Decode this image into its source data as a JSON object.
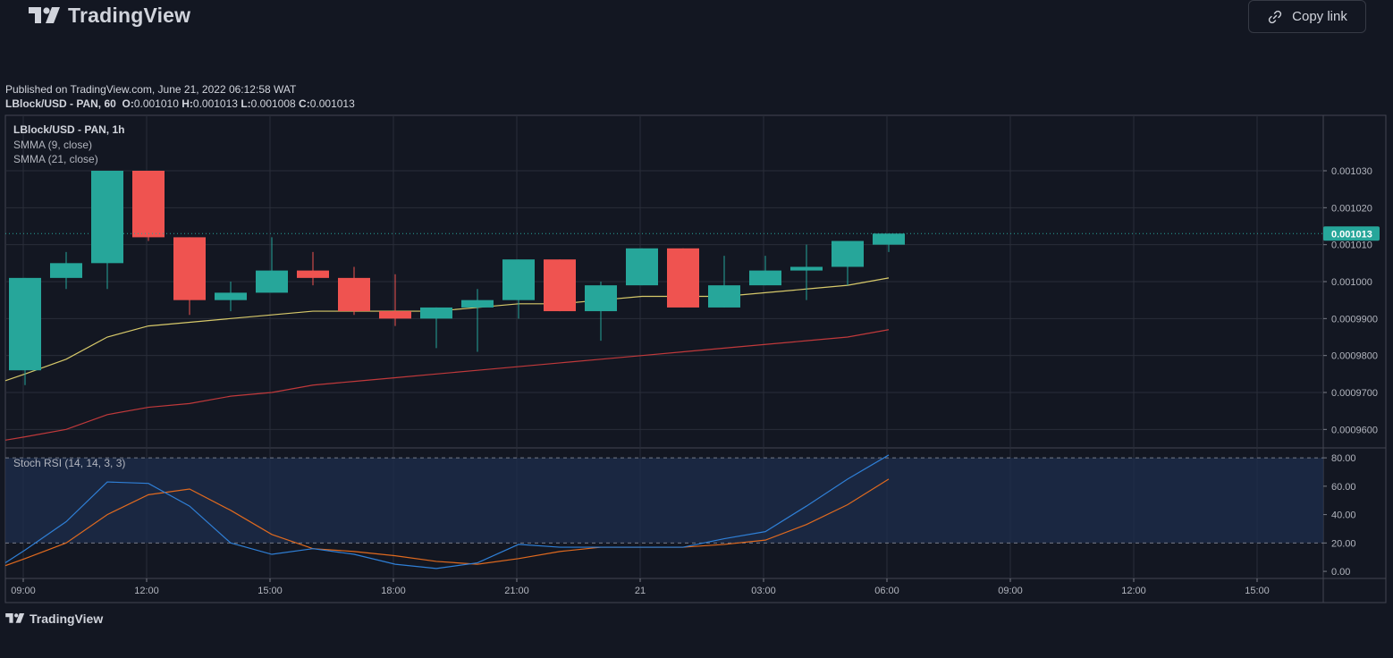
{
  "header": {
    "brand": "TradingView",
    "copy_link": "Copy link"
  },
  "info": {
    "published": "Published on TradingView.com, June 21, 2022 06:12:58 WAT",
    "symbol_line": "LBlock/USD - PAN, 60",
    "o_label": "O:",
    "o_value": "0.001010",
    "h_label": "H:",
    "h_value": "0.001013",
    "l_label": "L:",
    "l_value": "0.001008",
    "c_label": "C:",
    "c_value": "0.001013"
  },
  "legend": {
    "title": "LBlock/USD - PAN, 1h",
    "smma9": "SMMA (9, close)",
    "smma21": "SMMA (21, close)",
    "stoch": "Stoch RSI (14, 14, 3, 3)"
  },
  "footer": {
    "brand": "TradingView"
  },
  "colors": {
    "up": "#26a69a",
    "down": "#ef5350",
    "smma9": "#d7c96a",
    "smma21": "#c0393b",
    "k": "#2f7fd6",
    "d": "#e06a1f",
    "grid": "#2a2e39",
    "bg": "#131722"
  },
  "chart_data": {
    "type": "candlestick",
    "x_ticks": [
      "09:00",
      "12:00",
      "15:00",
      "18:00",
      "21:00",
      "21",
      "03:00",
      "06:00",
      "09:00",
      "12:00",
      "15:00"
    ],
    "y_ticks": [
      "0.001030",
      "0.001020",
      "0.001010",
      "0.001000",
      "0.0009900",
      "0.0009800",
      "0.0009700",
      "0.0009600"
    ],
    "y_range": [
      0.000955,
      0.001045
    ],
    "last_price": "0.001013",
    "candles": [
      {
        "o": 0.000976,
        "h": 0.001001,
        "l": 0.000972,
        "c": 0.001001
      },
      {
        "o": 0.001001,
        "h": 0.001008,
        "l": 0.000998,
        "c": 0.001005
      },
      {
        "o": 0.001005,
        "h": 0.00103,
        "l": 0.000998,
        "c": 0.00103
      },
      {
        "o": 0.00103,
        "h": 0.00103,
        "l": 0.001011,
        "c": 0.001012
      },
      {
        "o": 0.001012,
        "h": 0.001012,
        "l": 0.000991,
        "c": 0.000995
      },
      {
        "o": 0.000995,
        "h": 0.001,
        "l": 0.000992,
        "c": 0.000997
      },
      {
        "o": 0.000997,
        "h": 0.001012,
        "l": 0.000997,
        "c": 0.001003
      },
      {
        "o": 0.001003,
        "h": 0.001008,
        "l": 0.000999,
        "c": 0.001001
      },
      {
        "o": 0.001001,
        "h": 0.001004,
        "l": 0.000991,
        "c": 0.000992
      },
      {
        "o": 0.000992,
        "h": 0.001002,
        "l": 0.000988,
        "c": 0.00099
      },
      {
        "o": 0.00099,
        "h": 0.000993,
        "l": 0.000982,
        "c": 0.000993
      },
      {
        "o": 0.000993,
        "h": 0.000998,
        "l": 0.000981,
        "c": 0.000995
      },
      {
        "o": 0.000995,
        "h": 0.001006,
        "l": 0.00099,
        "c": 0.001006
      },
      {
        "o": 0.001006,
        "h": 0.001006,
        "l": 0.000992,
        "c": 0.000992
      },
      {
        "o": 0.000992,
        "h": 0.001,
        "l": 0.000984,
        "c": 0.000999
      },
      {
        "o": 0.000999,
        "h": 0.001009,
        "l": 0.000999,
        "c": 0.001009
      },
      {
        "o": 0.001009,
        "h": 0.001009,
        "l": 0.000993,
        "c": 0.000993
      },
      {
        "o": 0.000993,
        "h": 0.001007,
        "l": 0.000993,
        "c": 0.000999
      },
      {
        "o": 0.000999,
        "h": 0.001007,
        "l": 0.000999,
        "c": 0.001003
      },
      {
        "o": 0.001003,
        "h": 0.00101,
        "l": 0.000995,
        "c": 0.001004
      },
      {
        "o": 0.001004,
        "h": 0.001011,
        "l": 0.000999,
        "c": 0.001011
      },
      {
        "o": 0.00101,
        "h": 0.001013,
        "l": 0.001008,
        "c": 0.001013
      }
    ],
    "smma9": [
      0.000975,
      0.000979,
      0.000985,
      0.000988,
      0.000989,
      0.00099,
      0.000991,
      0.000992,
      0.000992,
      0.000992,
      0.000992,
      0.000993,
      0.000994,
      0.000994,
      0.000995,
      0.000996,
      0.000996,
      0.000996,
      0.000997,
      0.000998,
      0.000999,
      0.001001
    ],
    "smma21": [
      0.000958,
      0.00096,
      0.000964,
      0.000966,
      0.000967,
      0.000969,
      0.00097,
      0.000972,
      0.000973,
      0.000974,
      0.000975,
      0.000976,
      0.000977,
      0.000978,
      0.000979,
      0.00098,
      0.000981,
      0.000982,
      0.000983,
      0.000984,
      0.000985,
      0.000987
    ],
    "stoch": {
      "y_ticks": [
        "80.00",
        "60.00",
        "40.00",
        "20.00",
        "0.00"
      ],
      "bands": [
        20,
        80
      ],
      "y_range": [
        -5,
        87
      ],
      "k": [
        15,
        35,
        63,
        62,
        46,
        20,
        12,
        16,
        12,
        5,
        2,
        6,
        19,
        17,
        17,
        17,
        17,
        23,
        28,
        46,
        65,
        82
      ],
      "d": [
        9,
        20,
        40,
        54,
        58,
        43,
        26,
        16,
        14,
        11,
        7,
        5,
        9,
        14,
        17,
        17,
        17,
        19,
        22,
        33,
        47,
        65
      ]
    }
  }
}
